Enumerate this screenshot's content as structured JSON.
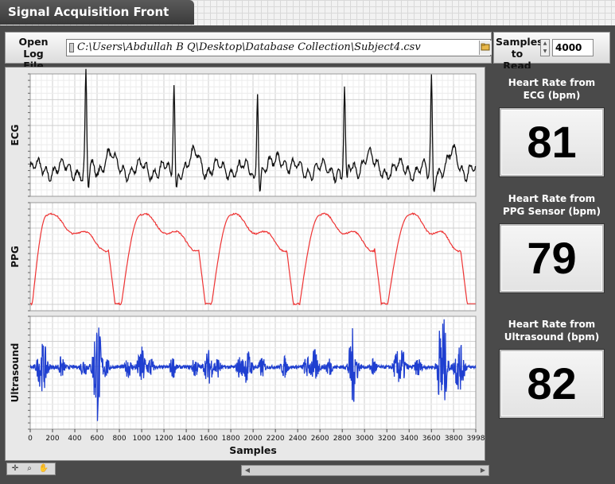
{
  "window": {
    "tab_title": "Signal Acquisition Front Panel"
  },
  "controls": {
    "open_log_label": "Open Log\nFile",
    "file_path": "C:\\Users\\Abdullah B Q\\Desktop\\Database Collection\\Subject4.csv",
    "samples_label": "Samples\nto Read",
    "samples_value": "4000"
  },
  "heart_rates": [
    {
      "title": "Heart Rate from\nECG (bpm)",
      "value": "81"
    },
    {
      "title": "Heart Rate from\nPPG Sensor (bpm)",
      "value": "79"
    },
    {
      "title": "Heart Rate from\nUltrasound (bpm)",
      "value": "82"
    }
  ],
  "chart_data": {
    "type": "line",
    "xlabel": "Samples",
    "xlim": [
      0,
      3998
    ],
    "x_ticks": [
      "0",
      "200",
      "400",
      "600",
      "800",
      "1000",
      "1200",
      "1400",
      "1600",
      "1800",
      "2000",
      "2200",
      "2400",
      "2600",
      "2800",
      "3000",
      "3200",
      "3400",
      "3600",
      "3800",
      "3998"
    ],
    "series": [
      {
        "name": "ECG",
        "color": "#111111",
        "r_peaks": [
          500,
          1290,
          2040,
          2820,
          3600
        ]
      },
      {
        "name": "PPG",
        "color": "#ee3333",
        "systolic_peaks": [
          150,
          990,
          1800,
          2600,
          3400
        ],
        "troughs": [
          760,
          1570,
          2360,
          3150,
          3920
        ]
      },
      {
        "name": "Ultrasound",
        "color": "#1f3fd0",
        "spikes": [
          120,
          600,
          1000,
          1600,
          1950,
          2550,
          2900,
          3330,
          3700,
          3840
        ]
      }
    ],
    "ylabels": [
      "ECG",
      "PPG",
      "Ultrasound"
    ],
    "grid": true
  }
}
